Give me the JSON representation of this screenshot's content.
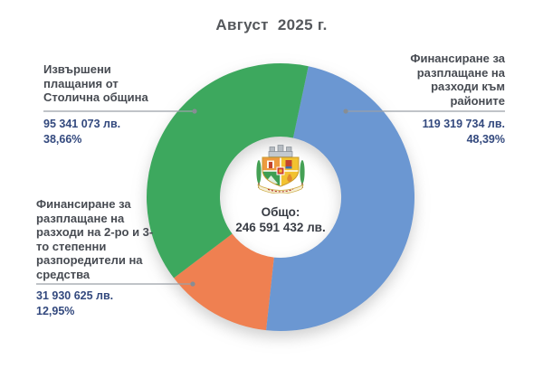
{
  "title": "Август  2025 г.",
  "emblem_icon": "sofia-coat-of-arms",
  "chart_data": {
    "type": "pie",
    "donut": true,
    "title": "Август 2025 г.",
    "start_angle_deg": 12,
    "direction": "clockwise-from-12-oclock",
    "inner_radius_ratio": 0.45,
    "legend_position": "callout-labels",
    "center": {
      "label": "Общо:",
      "value": 246591432,
      "value_text": "246 591 432 лв."
    },
    "slices": [
      {
        "id": "districts",
        "label": "Финансиране за разплащане на разходи към районите",
        "value": 119319734,
        "value_text": "119 319 734 лв.",
        "percent": 48.39,
        "percent_text": "48,39%",
        "color": "#6b97d2"
      },
      {
        "id": "spending-units",
        "label": "Финансиране за разплащане на разходи на 2-ро и 3-то степенни разпоредители на средства",
        "value": 31930625,
        "value_text": "31 930 625 лв.",
        "percent": 12.95,
        "percent_text": "12,95%",
        "color": "#ef8051"
      },
      {
        "id": "municipality-payments",
        "label": "Извършени плащания от Столична община",
        "value": 95341073,
        "value_text": "95 341 073 лв.",
        "percent": 38.66,
        "percent_text": "38,66%",
        "color": "#3da85e"
      }
    ]
  },
  "colors": {
    "blue_slice": "#6b97d2",
    "orange_slice": "#ef8051",
    "green_slice": "#3da85e",
    "value_text": "#33497e",
    "label_text": "#474b52",
    "title_text": "#55585c",
    "leader_line": "#9ba1a8"
  }
}
